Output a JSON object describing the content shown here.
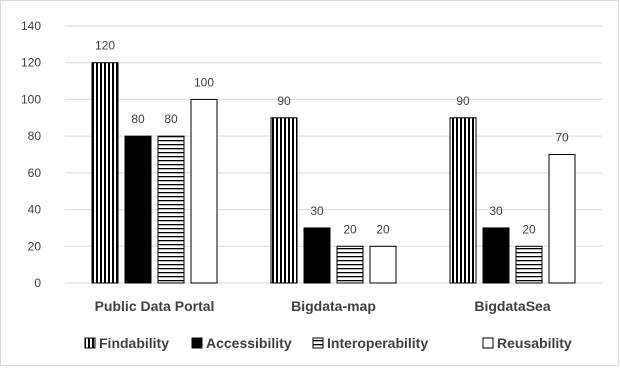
{
  "chart_data": {
    "type": "bar",
    "title": "",
    "xlabel": "",
    "ylabel": "",
    "categories": [
      "Public Data Portal",
      "Bigdata-map",
      "BigdataSea"
    ],
    "series": [
      {
        "name": "Findability",
        "values": [
          120,
          90,
          90
        ],
        "pattern": "vertical-lines"
      },
      {
        "name": "Accessibility",
        "values": [
          80,
          30,
          30
        ],
        "pattern": "solid-black"
      },
      {
        "name": "Interoperability",
        "values": [
          80,
          20,
          20
        ],
        "pattern": "horizontal-lines"
      },
      {
        "name": "Reusability",
        "values": [
          100,
          20,
          70
        ],
        "pattern": "white"
      }
    ],
    "ylim": [
      0,
      140
    ],
    "yticks": [
      0,
      20,
      40,
      60,
      80,
      100,
      120,
      140
    ],
    "grid": true,
    "legend_position": "bottom",
    "colors": {
      "grid": "#d9d9d9",
      "bar_stroke": "#000000",
      "text": "#404040",
      "solid": "#000000",
      "white": "#ffffff"
    }
  }
}
